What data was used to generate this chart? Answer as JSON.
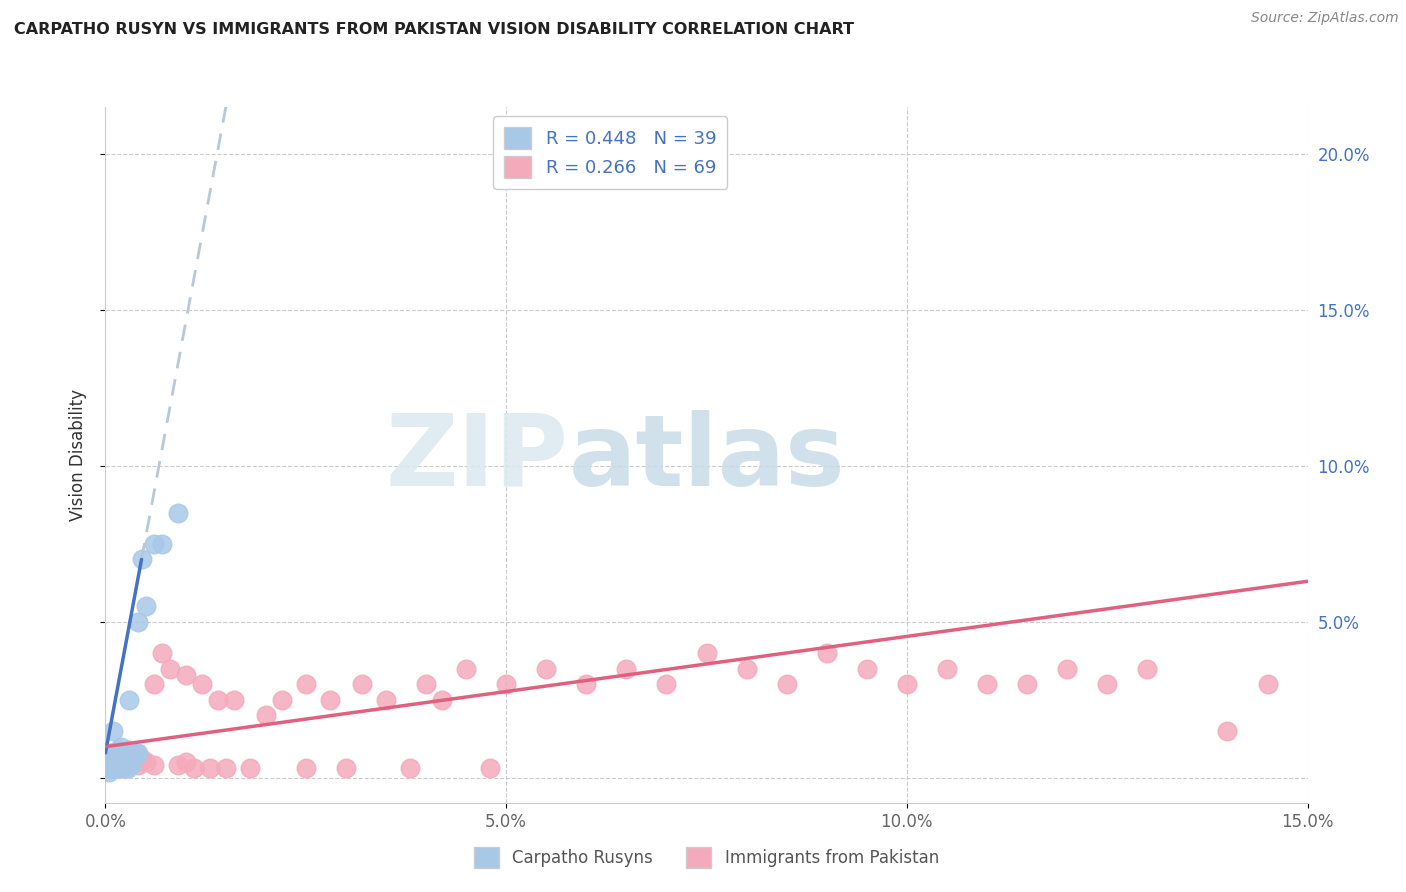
{
  "title": "CARPATHO RUSYN VS IMMIGRANTS FROM PAKISTAN VISION DISABILITY CORRELATION CHART",
  "source": "Source: ZipAtlas.com",
  "ylabel": "Vision Disability",
  "xmin": 0.0,
  "xmax": 0.15,
  "ymin": -0.008,
  "ymax": 0.215,
  "blue_R": 0.448,
  "blue_N": 39,
  "pink_R": 0.266,
  "pink_N": 69,
  "blue_color": "#a8c8e8",
  "pink_color": "#f4aabb",
  "blue_line_color": "#4472c4",
  "pink_line_color": "#e06080",
  "dashed_line_color": "#b8c8d8",
  "legend_label_blue": "Carpatho Rusyns",
  "legend_label_pink": "Immigrants from Pakistan",
  "watermark_zip": "ZIP",
  "watermark_atlas": "atlas",
  "blue_scatter_x": [
    0.0003,
    0.0004,
    0.0005,
    0.0005,
    0.0006,
    0.0007,
    0.0007,
    0.0008,
    0.0008,
    0.0009,
    0.001,
    0.001,
    0.0012,
    0.0013,
    0.0014,
    0.0015,
    0.0016,
    0.0016,
    0.0017,
    0.0018,
    0.002,
    0.002,
    0.0022,
    0.0023,
    0.0025,
    0.0026,
    0.0028,
    0.003,
    0.003,
    0.0032,
    0.0035,
    0.0038,
    0.004,
    0.004,
    0.0045,
    0.005,
    0.006,
    0.007,
    0.009
  ],
  "blue_scatter_y": [
    0.005,
    0.003,
    0.002,
    0.007,
    0.004,
    0.003,
    0.006,
    0.005,
    0.008,
    0.004,
    0.007,
    0.015,
    0.003,
    0.006,
    0.004,
    0.008,
    0.005,
    0.009,
    0.003,
    0.007,
    0.006,
    0.01,
    0.004,
    0.007,
    0.003,
    0.005,
    0.003,
    0.007,
    0.025,
    0.004,
    0.006,
    0.008,
    0.05,
    0.008,
    0.07,
    0.055,
    0.075,
    0.075,
    0.085
  ],
  "pink_scatter_x": [
    0.0002,
    0.0003,
    0.0004,
    0.0005,
    0.0006,
    0.0007,
    0.0008,
    0.0009,
    0.001,
    0.0012,
    0.0013,
    0.0015,
    0.0016,
    0.0018,
    0.002,
    0.0022,
    0.0025,
    0.003,
    0.0032,
    0.0035,
    0.004,
    0.0045,
    0.005,
    0.006,
    0.006,
    0.007,
    0.008,
    0.009,
    0.01,
    0.01,
    0.011,
    0.012,
    0.013,
    0.014,
    0.015,
    0.016,
    0.018,
    0.02,
    0.022,
    0.025,
    0.025,
    0.028,
    0.03,
    0.032,
    0.035,
    0.038,
    0.04,
    0.042,
    0.045,
    0.048,
    0.05,
    0.055,
    0.06,
    0.065,
    0.07,
    0.075,
    0.08,
    0.085,
    0.09,
    0.095,
    0.1,
    0.105,
    0.11,
    0.115,
    0.12,
    0.125,
    0.13,
    0.14,
    0.145
  ],
  "pink_scatter_y": [
    0.006,
    0.004,
    0.008,
    0.005,
    0.003,
    0.007,
    0.004,
    0.006,
    0.008,
    0.005,
    0.003,
    0.007,
    0.004,
    0.006,
    0.007,
    0.003,
    0.005,
    0.009,
    0.005,
    0.007,
    0.004,
    0.006,
    0.005,
    0.03,
    0.004,
    0.04,
    0.035,
    0.004,
    0.033,
    0.005,
    0.003,
    0.03,
    0.003,
    0.025,
    0.003,
    0.025,
    0.003,
    0.02,
    0.025,
    0.03,
    0.003,
    0.025,
    0.003,
    0.03,
    0.025,
    0.003,
    0.03,
    0.025,
    0.035,
    0.003,
    0.03,
    0.035,
    0.03,
    0.035,
    0.03,
    0.04,
    0.035,
    0.03,
    0.04,
    0.035,
    0.03,
    0.035,
    0.03,
    0.03,
    0.035,
    0.03,
    0.035,
    0.015,
    0.03
  ],
  "blue_line_x0": 0.0,
  "blue_line_x1": 0.0045,
  "blue_line_y0": 0.008,
  "blue_line_y1": 0.07,
  "pink_line_x0": 0.0,
  "pink_line_x1": 0.15,
  "pink_line_y0": 0.01,
  "pink_line_y1": 0.063
}
